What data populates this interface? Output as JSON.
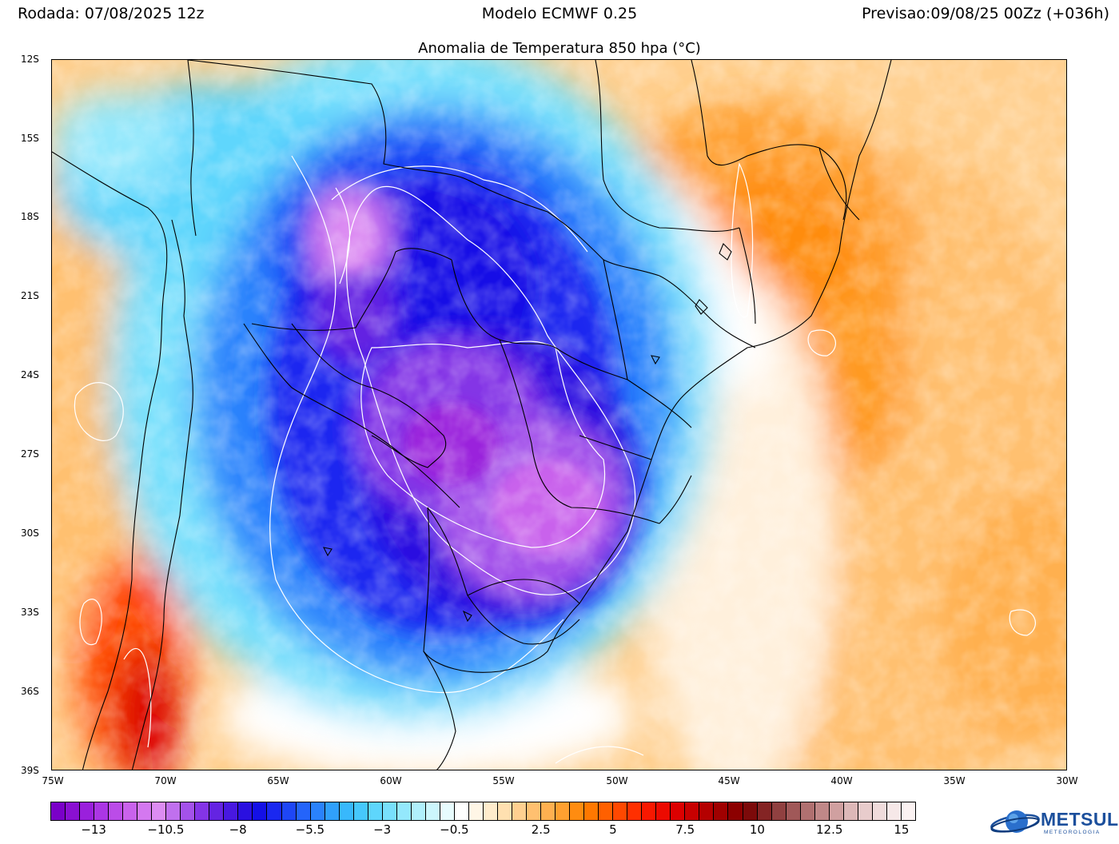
{
  "header": {
    "run": "Rodada: 07/08/2025 12z",
    "model": "Modelo ECMWF 0.25",
    "forecast": "Previsao:09/08/25 00Zz (+036h)"
  },
  "map": {
    "title": "Anomalia de Temperatura 850 hpa (°C)",
    "variable": "temperature anomaly at 850 hPa",
    "units": "°C",
    "extent": {
      "lon": [
        -75,
        -30
      ],
      "lat": [
        -39,
        -12
      ]
    },
    "lat_labels": [
      "12S",
      "15S",
      "18S",
      "21S",
      "24S",
      "27S",
      "30S",
      "33S",
      "36S",
      "39S"
    ],
    "lon_labels": [
      "75W",
      "70W",
      "65W",
      "60W",
      "55W",
      "50W",
      "45W",
      "40W",
      "35W",
      "30W"
    ],
    "cold_core": {
      "description": "strong negative anomaly",
      "center_lon": -55,
      "center_lat": -28,
      "min_value": -14
    },
    "warm_regions": [
      {
        "name": "southeast brazil / atlantic",
        "value": 4
      },
      {
        "name": "central chile",
        "value": 9
      }
    ]
  },
  "colorbar": {
    "labels": [
      "-13",
      "-10.5",
      "-8",
      "-5.5",
      "-3",
      "-0.5",
      "2.5",
      "5",
      "7.5",
      "10",
      "12.5",
      "15"
    ],
    "label_indices": [
      3,
      8,
      13,
      18,
      23,
      28,
      34,
      39,
      44,
      49,
      54,
      59
    ],
    "colors": [
      "#7a00c8",
      "#8a10d2",
      "#9a20dc",
      "#ab36e4",
      "#bb4ce8",
      "#c962ec",
      "#d478f0",
      "#dc8cf2",
      "#c070ee",
      "#a452ea",
      "#8434e6",
      "#6424e2",
      "#4818e0",
      "#2a10e0",
      "#1410e6",
      "#1a28f0",
      "#1e46f6",
      "#2464fa",
      "#2a82fc",
      "#30a0fc",
      "#38b8fc",
      "#46c8fc",
      "#5ed6fc",
      "#78e0fc",
      "#94e8fc",
      "#b0f0fc",
      "#ccf6fc",
      "#e8fcfe",
      "#ffffff",
      "#fff6e6",
      "#ffeccc",
      "#ffe0b0",
      "#ffd090",
      "#ffc070",
      "#ffb050",
      "#ffa030",
      "#ff8c10",
      "#ff7800",
      "#ff6000",
      "#ff4800",
      "#ff3000",
      "#f81800",
      "#ec0a00",
      "#dc0000",
      "#c80000",
      "#b40000",
      "#a00000",
      "#8c0000",
      "#7c0a0a",
      "#842424",
      "#904040",
      "#a05858",
      "#b07070",
      "#c08888",
      "#d0a0a0",
      "#ddb8b8",
      "#e8cccc",
      "#f0dcdc",
      "#f6e8e8",
      "#fbf2f2"
    ]
  },
  "logo": {
    "text": "METSUL",
    "subtext": "METEOROLOGIA"
  }
}
